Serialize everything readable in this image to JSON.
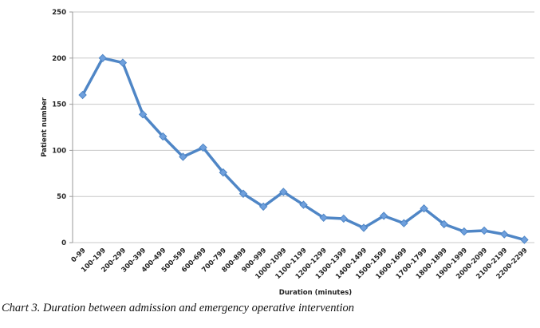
{
  "chart_data": {
    "type": "line",
    "title": "",
    "xlabel": "Duration (minutes)",
    "ylabel": "Patient number",
    "ylim": [
      0,
      250
    ],
    "yticks": [
      0,
      50,
      100,
      150,
      200,
      250
    ],
    "grid": true,
    "legend": "none",
    "categories": [
      "0-99",
      "100-199",
      "200-299",
      "300-399",
      "400-499",
      "500-599",
      "600-699",
      "700-799",
      "800-899",
      "900-999",
      "1000-1099",
      "1100-1199",
      "1200-1299",
      "1300-1399",
      "1400-1499",
      "1500-1599",
      "1600-1699",
      "1700-1799",
      "1800-1899",
      "1900-1999",
      "2000-2099",
      "2100-2199",
      "2200-2299"
    ],
    "series": [
      {
        "name": "Patient number",
        "color": "#4f86c6",
        "values": [
          160,
          200,
          195,
          139,
          115,
          93,
          103,
          76,
          53,
          39,
          55,
          41,
          27,
          26,
          16,
          29,
          21,
          37,
          20,
          12,
          13,
          9,
          3
        ]
      }
    ]
  },
  "caption": "Chart 3. Duration between admission and emergency operative intervention"
}
